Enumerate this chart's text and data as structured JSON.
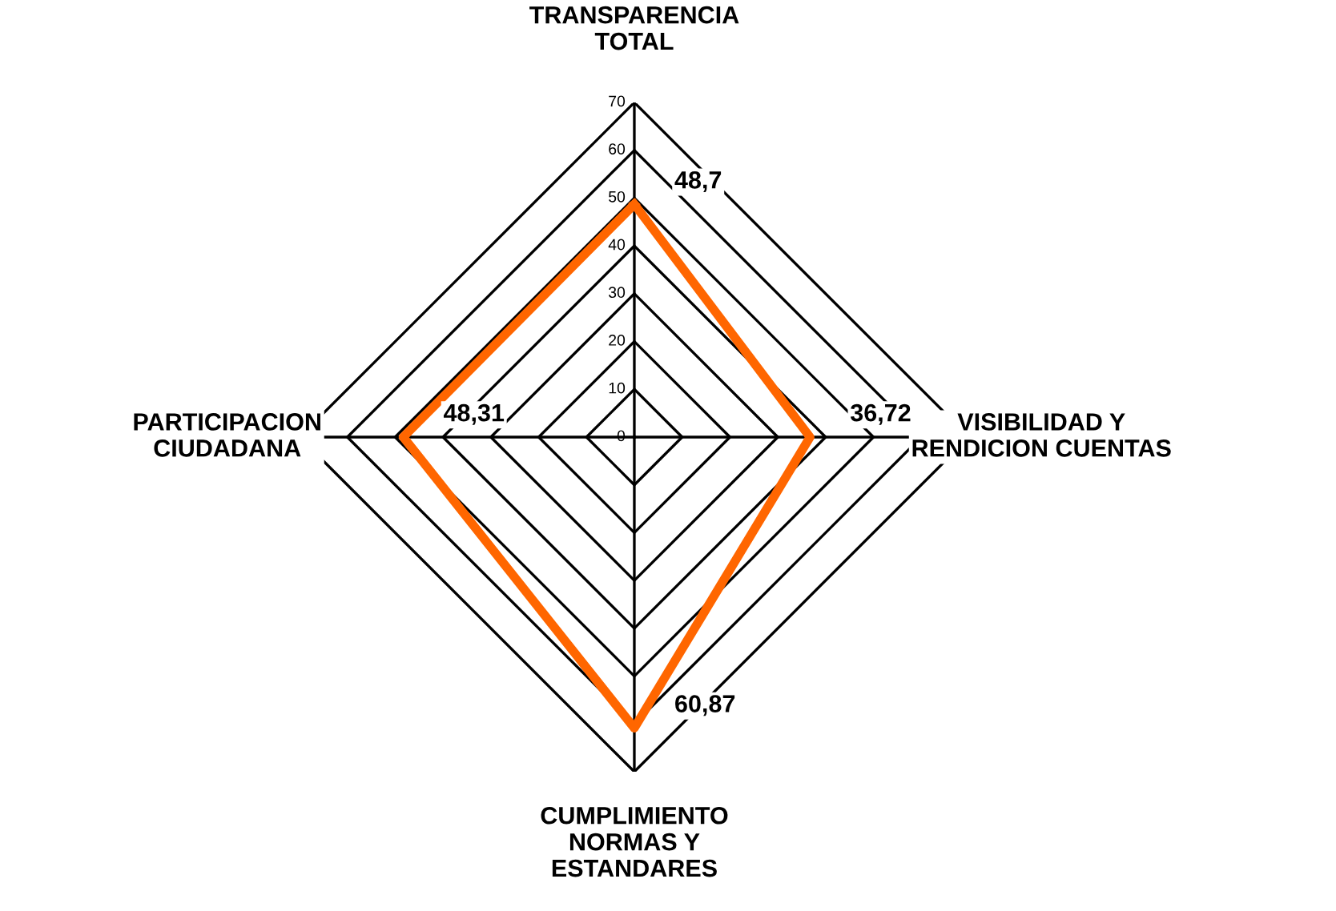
{
  "chart_data": {
    "type": "radar",
    "categories": [
      "TRANSPARENCIA\nTOTAL",
      "VISIBILIDAD Y\nRENDICION CUENTAS",
      "CUMPLIMIENTO\nNORMAS Y\nESTANDARES",
      "PARTICIPACION\nCIUDADANA"
    ],
    "series": [
      {
        "color": "#ff6600",
        "values": [
          48.7,
          36.72,
          60.87,
          48.31
        ],
        "value_labels": [
          "48,7",
          "36,72",
          "60,87",
          "48,31"
        ]
      }
    ],
    "ylim": [
      0,
      70
    ],
    "yticks": [
      0,
      10,
      20,
      30,
      40,
      50,
      60,
      70
    ],
    "grid": true,
    "legend": false
  }
}
